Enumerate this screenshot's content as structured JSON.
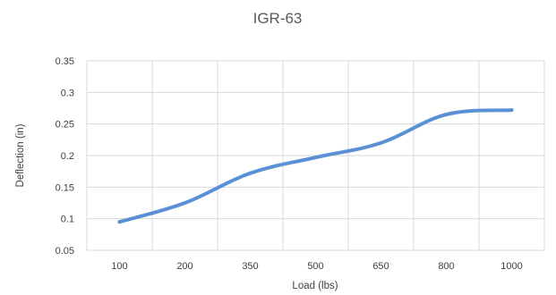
{
  "chart_data": {
    "type": "line",
    "title": "IGR-63",
    "xlabel": "Load (lbs)",
    "ylabel": "Deflection (in)",
    "x": [
      "100",
      "200",
      "350",
      "500",
      "650",
      "800",
      "1000"
    ],
    "series": [
      {
        "values": [
          0.095,
          0.125,
          0.172,
          0.197,
          0.22,
          0.265,
          0.272
        ]
      }
    ],
    "ylim": [
      0.05,
      0.35
    ],
    "yticks": [
      "0.05",
      "0.1",
      "0.15",
      "0.2",
      "0.25",
      "0.3",
      "0.35"
    ],
    "grid": true,
    "line_color": "#5B8FD6",
    "legend": "none"
  }
}
